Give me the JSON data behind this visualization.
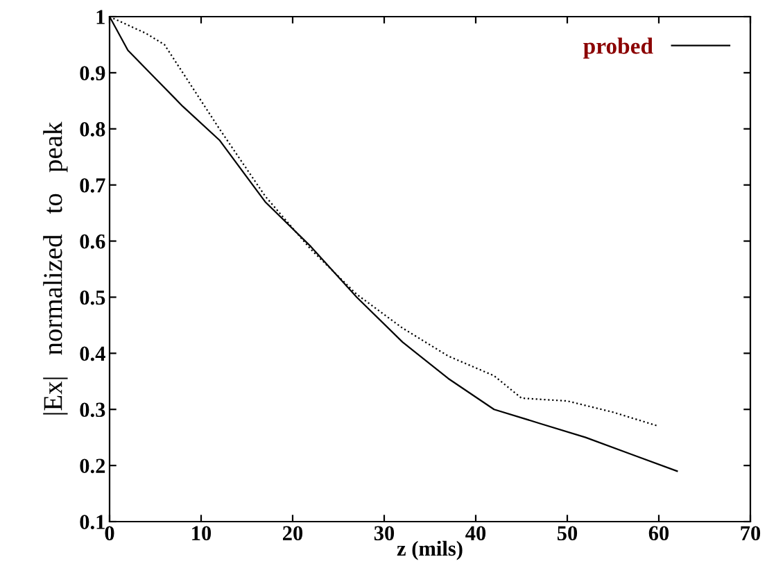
{
  "chart_data": {
    "type": "line",
    "xlabel": "z (mils)",
    "ylabel": "|Ex|   normalized   to   peak",
    "xlim": [
      0,
      70
    ],
    "xticks": [
      0,
      10,
      20,
      30,
      40,
      50,
      60,
      70
    ],
    "ylim": [
      0.1,
      1
    ],
    "yticks": [
      0.1,
      0.2,
      0.3,
      0.4,
      0.5,
      0.6,
      0.7,
      0.8,
      0.9,
      1
    ],
    "grid": false,
    "legend": "top right",
    "marker": "none",
    "series": [
      {
        "name": "probed",
        "color": "#000000",
        "line_style": "solid",
        "x": [
          0,
          2,
          5,
          8,
          12,
          17,
          22,
          27,
          32,
          37,
          42,
          47,
          52,
          57,
          62
        ],
        "values": [
          1.0,
          0.94,
          0.89,
          0.84,
          0.78,
          0.67,
          0.59,
          0.5,
          0.42,
          0.355,
          0.3,
          0.275,
          0.25,
          0.22,
          0.19
        ]
      },
      {
        "color": "#000000",
        "line_style": "dotted",
        "x": [
          0,
          4,
          6,
          8,
          12,
          17,
          22,
          27,
          32,
          37,
          42,
          45,
          50,
          55,
          60
        ],
        "values": [
          1.0,
          0.97,
          0.95,
          0.9,
          0.8,
          0.68,
          0.585,
          0.505,
          0.445,
          0.395,
          0.36,
          0.32,
          0.315,
          0.295,
          0.27
        ]
      }
    ]
  }
}
